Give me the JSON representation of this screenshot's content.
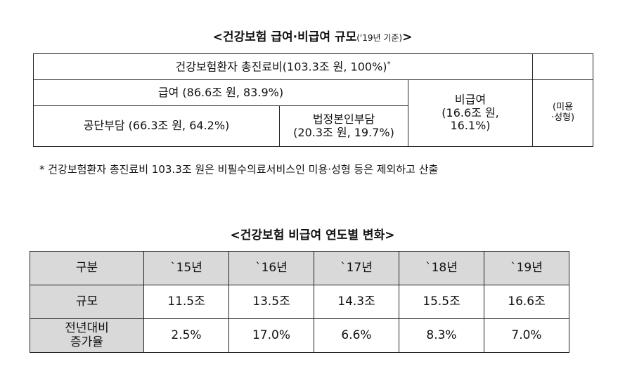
{
  "section1": {
    "title_main": "<건강보험 급여·비급여 규모",
    "title_note": "('19년 기준)",
    "title_end": ">",
    "table": {
      "total": "건강보험환자 총진료비(103.3조 원, 100%)",
      "total_mark": "*",
      "covered": "급여 (86.6조 원, 83.9%)",
      "uncovered": "비급여\n(16.6조 원,\n16.1%)",
      "cosmetic": "(미용\n·성형)",
      "public": "공단부담 (66.3조 원, 64.2%)",
      "copay": "법정본인부담\n(20.3조 원, 19.7%)"
    },
    "footnote": "* 건강보험환자 총진료비 103.3조 원은 비필수의료서비스인 미용·성형 등은 제외하고 산출"
  },
  "section2": {
    "title": "<건강보험 비급여 연도별 변화>",
    "table": {
      "header": [
        "구분",
        "`15년",
        "`16년",
        "`17년",
        "`18년",
        "`19년"
      ],
      "rows": [
        [
          "규모",
          "11.5조",
          "13.5조",
          "14.3조",
          "15.5조",
          "16.6조"
        ],
        [
          "전년대비\n증가율",
          "2.5%",
          "17.0%",
          "6.6%",
          "8.3%",
          "7.0%"
        ]
      ]
    }
  }
}
